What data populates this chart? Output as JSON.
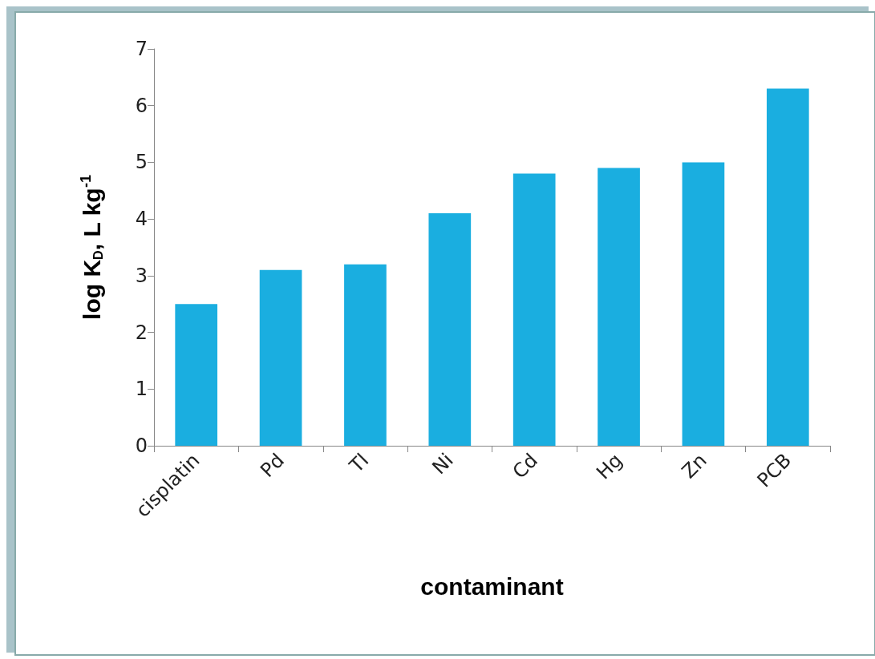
{
  "chart_data": {
    "type": "bar",
    "xlabel": "contaminant",
    "ylabel": "log K$_{D}$, L kg$^{-1}$",
    "categories": [
      "cisplatin",
      "Pd",
      "Tl",
      "Ni",
      "Cd",
      "Hg",
      "Zn",
      "PCB"
    ],
    "values": [
      2.5,
      3.1,
      3.2,
      4.1,
      4.8,
      4.9,
      5.0,
      6.3
    ],
    "color": "#1aaee0",
    "ylim": [
      0,
      7
    ],
    "yticks": [
      0,
      1,
      2,
      3,
      4,
      5,
      6,
      7
    ],
    "grid": false
  }
}
